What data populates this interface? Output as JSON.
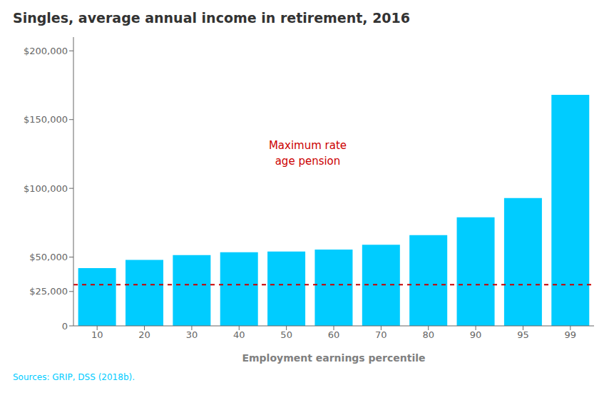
{
  "chart_data": {
    "type": "bar",
    "title": "Singles, average annual income in retirement, 2016",
    "xlabel": "Employment earnings percentile",
    "categories": [
      "10",
      "20",
      "30",
      "40",
      "50",
      "60",
      "70",
      "80",
      "90",
      "95",
      "99"
    ],
    "values": [
      42000,
      48000,
      51500,
      53500,
      54000,
      55500,
      59000,
      66000,
      79000,
      93000,
      168000
    ],
    "color": "#00CCFF",
    "ylim": [
      0,
      210000
    ],
    "yticks": [
      0,
      {
        "value": 25000,
        "label": "$25,000"
      },
      {
        "value": 50000,
        "label": "$50,000"
      },
      {
        "value": 100000,
        "label": "$100,000"
      },
      {
        "value": 150000,
        "label": "$150,000"
      },
      {
        "value": 200000,
        "label": "$200,000"
      }
    ],
    "grid": false,
    "hlines": [
      {
        "y": 30000,
        "color": "#CC0000",
        "line_style": "dashed",
        "annotations": [
          "Maximum rate",
          "age pension"
        ]
      }
    ],
    "source": "Sources: GRIP, DSS (2018b)."
  }
}
